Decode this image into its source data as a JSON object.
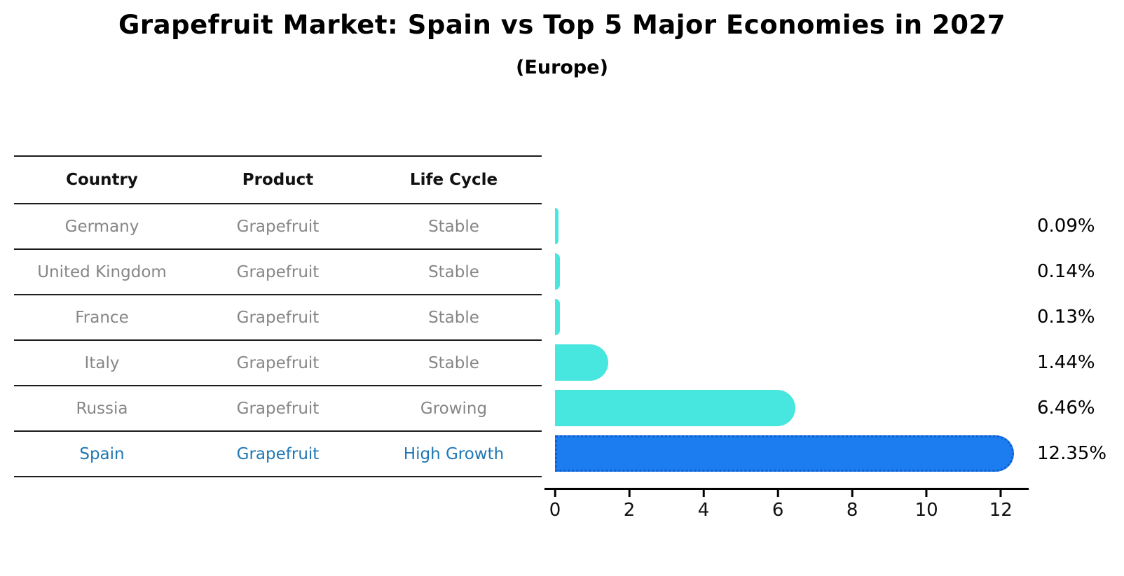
{
  "title": "Grapefruit Market: Spain vs Top 5 Major Economies in 2027",
  "subtitle": "(Europe)",
  "table": {
    "headers": [
      "Country",
      "Product",
      "Life Cycle"
    ],
    "rows": [
      {
        "country": "Germany",
        "product": "Grapefruit",
        "life_cycle": "Stable",
        "highlight": false
      },
      {
        "country": "United Kingdom",
        "product": "Grapefruit",
        "life_cycle": "Stable",
        "highlight": false
      },
      {
        "country": "France",
        "product": "Grapefruit",
        "life_cycle": "Stable",
        "highlight": false
      },
      {
        "country": "Italy",
        "product": "Grapefruit",
        "life_cycle": "Stable",
        "highlight": false
      },
      {
        "country": "Russia",
        "product": "Grapefruit",
        "life_cycle": "Growing",
        "highlight": false
      },
      {
        "country": "Spain",
        "product": "Grapefruit",
        "life_cycle": "High Growth",
        "highlight": true
      }
    ]
  },
  "chart_data": {
    "type": "bar",
    "orientation": "horizontal",
    "title": "Grapefruit Market: Spain vs Top 5 Major Economies in 2027",
    "subtitle": "(Europe)",
    "categories": [
      "Germany",
      "United Kingdom",
      "France",
      "Italy",
      "Russia",
      "Spain"
    ],
    "values": [
      0.09,
      0.14,
      0.13,
      1.44,
      6.46,
      12.35
    ],
    "value_labels": [
      "0.09%",
      "0.14%",
      "0.13%",
      "1.44%",
      "6.46%",
      "12.35%"
    ],
    "highlight_category": "Spain",
    "xticks": [
      0,
      2,
      4,
      6,
      8,
      10,
      12
    ],
    "xlim": [
      0,
      12.75
    ],
    "grid": false,
    "legend": false,
    "xlabel": "",
    "ylabel": ""
  },
  "colors": {
    "bar_default": "#47e6de",
    "bar_highlight": "#1c7df0",
    "bar_highlight_border": "#0e5ecc",
    "highlight_text": "#1f77b4",
    "muted_text": "#868686",
    "text": "#000000"
  }
}
